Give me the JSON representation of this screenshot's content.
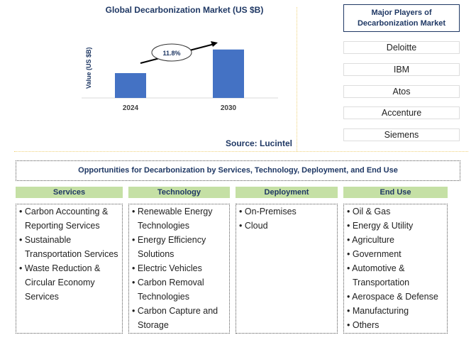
{
  "chart_data": {
    "type": "bar",
    "title": "Global Decarbonization Market (US $B)",
    "ylabel": "Value (US $B)",
    "xlabel": "",
    "categories": [
      "2024",
      "2030"
    ],
    "values": [
      1.0,
      1.95
    ],
    "annotation": "11.8%",
    "source": "Source: Lucintel",
    "grid": false,
    "bar_color": "#4472c4"
  },
  "players": {
    "title": "Major Players of Decarbonization Market",
    "items": [
      "Deloitte",
      "IBM",
      "Atos",
      "Accenture",
      "Siemens"
    ]
  },
  "opportunities": {
    "title": "Opportunities for Decarbonization by Services, Technology, Deployment, and End Use",
    "columns": [
      {
        "header": "Services",
        "items": [
          "Carbon Accounting & Reporting Services",
          "Sustainable Transportation Services",
          "Waste Reduction & Circular Economy Services"
        ]
      },
      {
        "header": "Technology",
        "items": [
          "Renewable Energy Technologies",
          "Energy Efficiency Solutions",
          "Electric Vehicles",
          "Carbon Removal Technologies",
          "Carbon Capture and Storage"
        ]
      },
      {
        "header": "Deployment",
        "items": [
          "On-Premises",
          "Cloud"
        ]
      },
      {
        "header": "End Use",
        "items": [
          "Oil & Gas",
          "Energy & Utility",
          "Agriculture",
          "Government",
          "Automotive & Transportation",
          "Aerospace & Defense",
          "Manufacturing",
          "Others"
        ]
      }
    ]
  }
}
